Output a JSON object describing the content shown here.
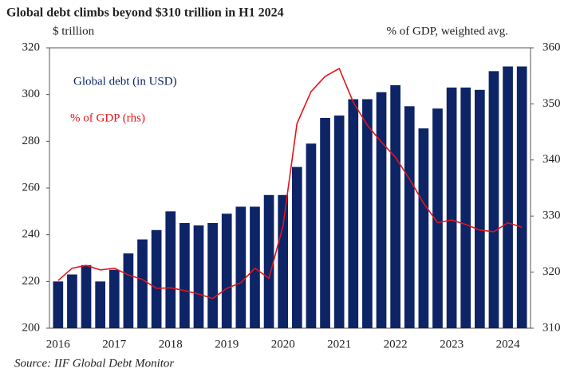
{
  "chart_data": {
    "type": "bar_line",
    "title": "Global debt climbs beyond $310 trillion in H1 2024",
    "y_label": "$ trillion",
    "y2_label": "% of GDP, weighted avg.",
    "source": "Source: IIF Global Debt Monitor",
    "categories": [
      "2016",
      null,
      null,
      null,
      "2017",
      null,
      null,
      null,
      "2018",
      null,
      null,
      null,
      "2019",
      null,
      null,
      null,
      "2020",
      null,
      null,
      null,
      "2021",
      null,
      null,
      null,
      "2022",
      null,
      null,
      null,
      "2023",
      null,
      null,
      null,
      "2024",
      null
    ],
    "series": [
      {
        "name": "Global debt (in USD)",
        "type": "bar",
        "color": "#0d2466",
        "axis": "y",
        "values": [
          220,
          223,
          227,
          220,
          225,
          232,
          238,
          242,
          250,
          245,
          244,
          245,
          249,
          252,
          252,
          257,
          257,
          269,
          279,
          290,
          291,
          298,
          298,
          301,
          304,
          295,
          285.5,
          294,
          303,
          303,
          302,
          310,
          312,
          312
        ]
      },
      {
        "name": "% of GDP (rhs)",
        "type": "line",
        "color": "#e3141b",
        "axis": "y2",
        "values": [
          318.5,
          320.7,
          321.2,
          320.4,
          320.7,
          319.5,
          318.7,
          317.1,
          317.2,
          316.7,
          316.1,
          315.3,
          317.1,
          318.1,
          320.7,
          318.9,
          328.2,
          346.5,
          352.2,
          354.9,
          356.3,
          350.3,
          346.2,
          343.2,
          340.5,
          336.6,
          332.3,
          328.8,
          329.3,
          328.5,
          327.5,
          327.2,
          328.8,
          328.0
        ]
      }
    ],
    "ylim": [
      200,
      320
    ],
    "yticks": [
      200,
      220,
      240,
      260,
      280,
      300,
      320
    ],
    "y2lim": [
      310,
      360
    ],
    "y2ticks": [
      310,
      320,
      330,
      340,
      350,
      360
    ]
  }
}
